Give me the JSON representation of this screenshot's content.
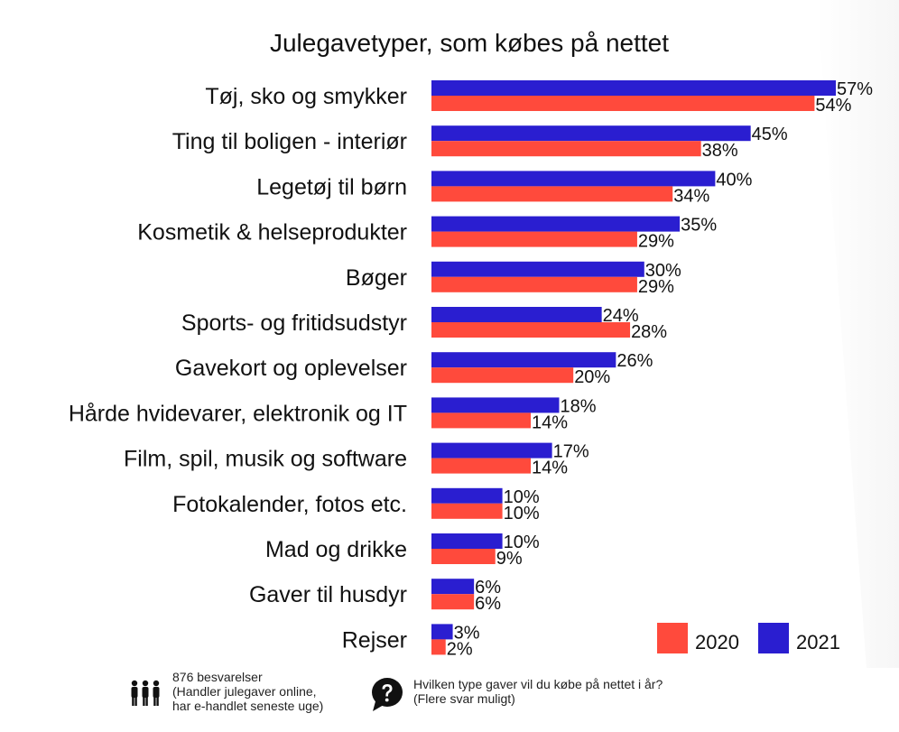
{
  "chart_data": {
    "type": "bar",
    "orientation": "horizontal",
    "title": "Julegavetyper, som købes på nettet",
    "categories": [
      "Tøj, sko og smykker",
      "Ting til boligen - interiør",
      "Legetøj til børn",
      "Kosmetik & helseprodukter",
      "Bøger",
      "Sports- og fritidsudstyr",
      "Gavekort og oplevelser",
      "Hårde hvidevarer, elektronik og IT",
      "Film, spil, musik og software",
      "Fotokalender, fotos etc.",
      "Mad og drikke",
      "Gaver til husdyr",
      "Rejser"
    ],
    "series": [
      {
        "name": "2021",
        "color": "#2a1ed0",
        "values": [
          57,
          45,
          40,
          35,
          30,
          24,
          26,
          18,
          17,
          10,
          10,
          6,
          3
        ],
        "labels": [
          "57%",
          "45%",
          "40%",
          "35%",
          "30%",
          "24%",
          "26%",
          "18%",
          "17%",
          "10%",
          "10%",
          "6%",
          "3%"
        ]
      },
      {
        "name": "2020",
        "color": "#ff4a3c",
        "values": [
          54,
          38,
          34,
          29,
          29,
          28,
          20,
          14,
          14,
          10,
          9,
          6,
          2
        ],
        "labels": [
          "54%",
          "38%",
          "34%",
          "29%",
          "29%",
          "28%",
          "20%",
          "14%",
          "14%",
          "10%",
          "9%",
          "6%",
          "2%"
        ]
      }
    ],
    "xlim": [
      0,
      57
    ],
    "grid": false,
    "legend_position": "bottom-right",
    "legend_order": [
      "2020",
      "2021"
    ]
  },
  "footer": {
    "respondents": {
      "icon": "people-icon",
      "lines": [
        "876 besvarelser",
        "(Handler julegaver online,",
        "har e-handlet seneste uge)"
      ]
    },
    "question": {
      "icon": "question-bubble-icon",
      "lines": [
        "Hvilken type gaver vil du købe på nettet i år?",
        "(Flere svar muligt)"
      ]
    }
  }
}
